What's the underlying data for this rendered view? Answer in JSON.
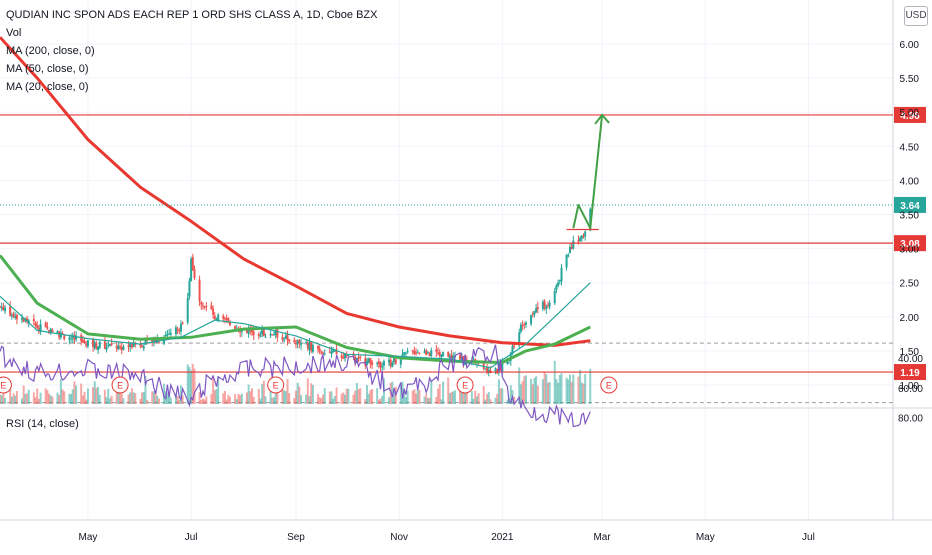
{
  "legend": {
    "symbol": "QUDIAN INC SPON ADS EACH REP 1 ORD SHS CLASS A, 1D, Cboe BZX",
    "vol": "Vol",
    "ma200": "MA (200, close, 0)",
    "ma50": "MA (50, close, 0)",
    "ma20": "MA (20, close, 0)"
  },
  "currency_button": "USD",
  "rsi_label": "RSI (14, close)",
  "colors": {
    "up": "#26a69a",
    "down": "#ef5350",
    "ma200": "#e8382f",
    "ma50": "#4caf50",
    "ma20": "#26a69a",
    "rsi": "#7e57c2",
    "rsi_band": "#f3e5f5",
    "level_line": "#e53935",
    "arrow": "#43a047",
    "last_price": "#26a69a"
  },
  "chart_data": [
    {
      "type": "line",
      "title": "QUDIAN INC SPON ADS EACH REP 1 ORD SHS CLASS A, 1D, Cboe BZX",
      "x_ticks": [
        "May",
        "Jul",
        "Sep",
        "Nov",
        "2021",
        "Mar",
        "May",
        "Jul"
      ],
      "y_ticks": [
        "6.00",
        "5.50",
        "5.00",
        "4.50",
        "4.00",
        "3.50",
        "3.00",
        "2.50",
        "2.00",
        "1.50",
        "1.00"
      ],
      "ylim": [
        0.9,
        6.3
      ],
      "grid": true,
      "price_scale": "right",
      "last_price": 3.64,
      "horizontal_levels": [
        {
          "label": "4.96",
          "value": 4.96
        },
        {
          "label": "3.08",
          "value": 3.08
        },
        {
          "label": "1.19",
          "value": 1.19
        }
      ],
      "earnings_markers": [
        "E",
        "E",
        "E",
        "E",
        "E"
      ],
      "series": [
        {
          "name": "MA (200, close, 0)",
          "x": [
            "2020-03-10",
            "2020-04-01",
            "2020-05-01",
            "2020-06-01",
            "2020-07-01",
            "2020-08-01",
            "2020-09-01",
            "2020-10-01",
            "2020-11-01",
            "2020-12-01",
            "2021-01-01",
            "2021-02-01",
            "2021-02-22"
          ],
          "values": [
            6.1,
            5.5,
            4.6,
            3.9,
            3.4,
            2.85,
            2.45,
            2.05,
            1.85,
            1.72,
            1.62,
            1.58,
            1.65
          ]
        },
        {
          "name": "MA (50, close, 0)",
          "x": [
            "2020-03-10",
            "2020-04-01",
            "2020-05-01",
            "2020-06-01",
            "2020-07-01",
            "2020-08-01",
            "2020-09-01",
            "2020-10-01",
            "2020-11-01",
            "2020-12-01",
            "2021-01-01",
            "2021-01-15",
            "2021-02-01",
            "2021-02-22"
          ],
          "values": [
            2.9,
            2.2,
            1.75,
            1.67,
            1.7,
            1.82,
            1.85,
            1.55,
            1.4,
            1.35,
            1.33,
            1.5,
            1.6,
            1.85
          ]
        },
        {
          "name": "MA (20, close, 0)",
          "x": [
            "2020-03-10",
            "2020-04-01",
            "2020-05-01",
            "2020-06-01",
            "2020-06-25",
            "2020-07-15",
            "2020-08-01",
            "2020-09-01",
            "2020-10-01",
            "2020-11-01",
            "2020-12-01",
            "2020-12-25",
            "2021-01-15",
            "2021-02-01",
            "2021-02-22"
          ],
          "values": [
            2.3,
            1.8,
            1.68,
            1.6,
            1.7,
            1.95,
            1.9,
            1.72,
            1.45,
            1.42,
            1.38,
            1.25,
            1.6,
            2.0,
            2.5
          ]
        },
        {
          "name": "Close",
          "x": [
            "2020-03-10",
            "2020-04-01",
            "2020-04-20",
            "2020-05-01",
            "2020-05-20",
            "2020-06-10",
            "2020-06-28",
            "2020-07-01",
            "2020-07-05",
            "2020-07-15",
            "2020-08-01",
            "2020-08-20",
            "2020-09-05",
            "2020-09-25",
            "2020-10-10",
            "2020-10-25",
            "2020-11-10",
            "2020-11-25",
            "2020-12-10",
            "2020-12-28",
            "2021-01-05",
            "2021-01-12",
            "2021-01-20",
            "2021-01-28",
            "2021-02-03",
            "2021-02-08",
            "2021-02-12",
            "2021-02-15",
            "2021-02-18",
            "2021-02-22"
          ],
          "values": [
            2.15,
            1.85,
            1.7,
            1.6,
            1.55,
            1.65,
            1.9,
            2.9,
            2.3,
            2.0,
            1.8,
            1.75,
            1.6,
            1.45,
            1.35,
            1.3,
            1.5,
            1.45,
            1.35,
            1.2,
            1.4,
            1.9,
            2.1,
            2.2,
            2.5,
            2.9,
            3.1,
            3.15,
            3.2,
            3.64
          ]
        },
        {
          "name": "Projection",
          "x": [
            "2021-02-12",
            "2021-02-15",
            "2021-02-22",
            "2021-03-01"
          ],
          "values": [
            3.3,
            3.64,
            3.3,
            4.96
          ]
        }
      ]
    },
    {
      "type": "line",
      "title": "RSI (14, close)",
      "y_ticks": [
        "80.00",
        "60.00",
        "40.00"
      ],
      "ylim": [
        28,
        88
      ],
      "bands": [
        30,
        70
      ],
      "x": [
        "2020-03-10",
        "2020-04-01",
        "2020-05-01",
        "2020-06-01",
        "2020-07-01",
        "2020-07-10",
        "2020-08-01",
        "2020-09-01",
        "2020-10-01",
        "2020-11-01",
        "2020-11-15",
        "2020-12-01",
        "2020-12-28",
        "2021-01-05",
        "2021-01-15",
        "2021-02-01",
        "2021-02-10",
        "2021-02-22"
      ],
      "values": [
        38,
        50,
        48,
        52,
        70,
        58,
        48,
        45,
        42,
        62,
        58,
        44,
        36,
        66,
        74,
        78,
        84,
        80
      ]
    }
  ]
}
